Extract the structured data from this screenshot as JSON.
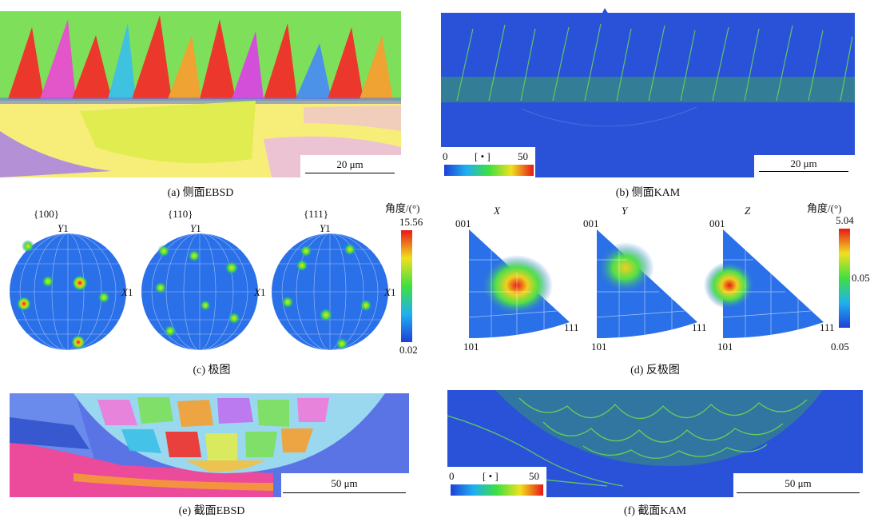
{
  "panels": {
    "a": {
      "caption": "(a) 侧面EBSD",
      "scale": "20 μm"
    },
    "b": {
      "caption": "(b) 侧面KAM",
      "scale": "20 μm",
      "kam": {
        "min": "0",
        "unit": "[ • ]",
        "max": "50"
      }
    },
    "c": {
      "caption": "(c) 极图",
      "figures": [
        {
          "title": "{100}"
        },
        {
          "title": "{110}"
        },
        {
          "title": "{111}"
        }
      ],
      "axis_y": "Y",
      "axis_x": "X",
      "axis_mark": "1",
      "colorbar": {
        "title": "角度/(°)",
        "max": "15.56",
        "min": "0.02"
      }
    },
    "d": {
      "caption": "(d) 反极图",
      "figures": [
        {
          "title": "X"
        },
        {
          "title": "Y"
        },
        {
          "title": "Z"
        }
      ],
      "corner_001": "001",
      "corner_101": "101",
      "corner_111": "111",
      "colorbar": {
        "title": "角度/(°)",
        "max": "5.04",
        "mid": "0.05",
        "min": "0.05"
      }
    },
    "e": {
      "caption": "(e) 截面EBSD",
      "scale": "50 μm"
    },
    "f": {
      "caption": "(f) 截面KAM",
      "scale": "50 μm",
      "kam": {
        "min": "0",
        "unit": "[ • ]",
        "max": "50"
      }
    }
  },
  "colors": {
    "kam_blue": "#2a52d8",
    "grain_green": "#7ddc3a",
    "grain_red": "#f2302a",
    "base_yellow": "#f4ec6a"
  }
}
